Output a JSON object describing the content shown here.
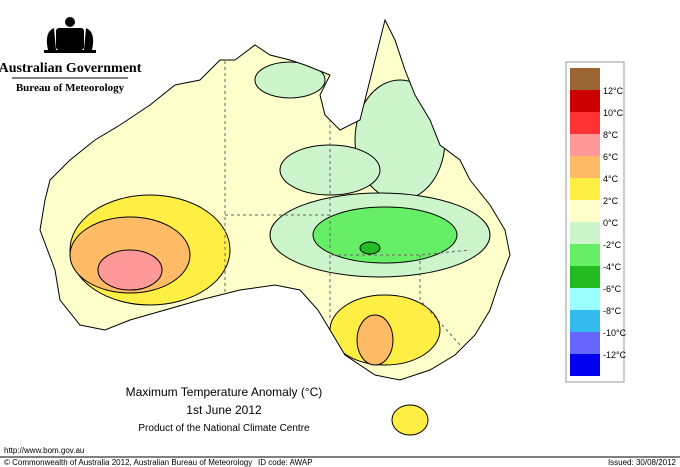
{
  "header": {
    "government": "Australian Government",
    "bureau": "Bureau of Meteorology"
  },
  "map": {
    "title": "Maximum Temperature Anomaly (°C)",
    "date": "1st June 2012",
    "product": "Product of the National Climate Centre"
  },
  "legend": {
    "colors": [
      "#996633",
      "#cc0000",
      "#ff3333",
      "#ff9999",
      "#ffbb66",
      "#ffee44",
      "#ffffcc",
      "#ccf5cc",
      "#66ee66",
      "#22bb22",
      "#99ffff",
      "#33bbee",
      "#6666ff",
      "#0000ee"
    ],
    "labels": [
      "12°C",
      "10°C",
      "8°C",
      "6°C",
      "4°C",
      "2°C",
      "0°C",
      "-2°C",
      "-4°C",
      "-6°C",
      "-8°C",
      "-10°C",
      "-12°C"
    ]
  },
  "footer": {
    "url": "http://www.bom.gov.au",
    "copyright": "© Commonwealth of Australia 2012, Australian Bureau of Meteorology",
    "id_code": "ID code: AWAP",
    "issued": "Issued: 30/08/2012"
  }
}
